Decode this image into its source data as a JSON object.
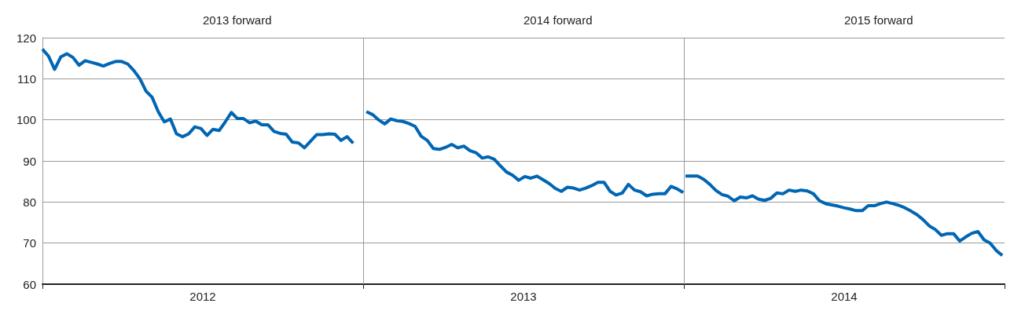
{
  "chart_data": {
    "type": "line",
    "annotations": [
      "2013 forward",
      "2014 forward",
      "2015 forward"
    ],
    "series": [
      {
        "color": "#0066b3",
        "x": [
          2012,
          2012.019,
          2012.038,
          2012.057,
          2012.076,
          2012.095,
          2012.114,
          2012.133,
          2012.152,
          2012.171,
          2012.19,
          2012.209,
          2012.228,
          2012.247,
          2012.266,
          2012.285,
          2012.304,
          2012.323,
          2012.342,
          2012.361,
          2012.38,
          2012.399,
          2012.418,
          2012.437,
          2012.456,
          2012.475,
          2012.494,
          2012.513,
          2012.532,
          2012.551,
          2012.57,
          2012.589,
          2012.608,
          2012.627,
          2012.646,
          2012.665,
          2012.684,
          2012.703,
          2012.722,
          2012.741,
          2012.76,
          2012.779,
          2012.798,
          2012.817,
          2012.836,
          2012.855,
          2012.874,
          2012.893,
          2012.912,
          2012.931,
          2012.95,
          2012.969
        ],
        "values": [
          117.2,
          115.5,
          112.3,
          115.3,
          116.1,
          115.2,
          113.3,
          114.4,
          114,
          113.6,
          113.1,
          113.7,
          114.2,
          114.2,
          113.6,
          112,
          110,
          107,
          105.5,
          102,
          99.5,
          100.2,
          96.6,
          95.9,
          96.6,
          98.3,
          97.9,
          96.2,
          97.7,
          97.4,
          99.5,
          101.8,
          100.3,
          100.3,
          99.3,
          99.7,
          98.8,
          98.8,
          97.2,
          96.7,
          96.5,
          94.6,
          94.4,
          93.2,
          94.8,
          96.4,
          96.4,
          96.6,
          96.5,
          95,
          95.9,
          94.3
        ]
      },
      {
        "color": "#0066b3",
        "x": [
          2013.01,
          2013.029,
          2013.048,
          2013.067,
          2013.086,
          2013.105,
          2013.124,
          2013.143,
          2013.162,
          2013.181,
          2013.2,
          2013.219,
          2013.238,
          2013.257,
          2013.276,
          2013.295,
          2013.314,
          2013.333,
          2013.352,
          2013.371,
          2013.39,
          2013.409,
          2013.428,
          2013.447,
          2013.466,
          2013.485,
          2013.504,
          2013.523,
          2013.542,
          2013.561,
          2013.58,
          2013.599,
          2013.618,
          2013.637,
          2013.656,
          2013.675,
          2013.694,
          2013.713,
          2013.732,
          2013.751,
          2013.77,
          2013.789,
          2013.808,
          2013.827,
          2013.846,
          2013.865,
          2013.884,
          2013.903,
          2013.922,
          2013.941,
          2013.96,
          2013.979,
          2013.998
        ],
        "values": [
          102,
          101.3,
          100,
          99,
          100.2,
          99.8,
          99.6,
          99.1,
          98.4,
          96,
          95,
          93,
          92.8,
          93.3,
          94,
          93.2,
          93.6,
          92.5,
          92,
          90.7,
          91,
          90.4,
          88.8,
          87.3,
          86.5,
          85.3,
          86.2,
          85.8,
          86.3,
          85.4,
          84.5,
          83.3,
          82.6,
          83.6,
          83.4,
          82.9,
          83.4,
          84,
          84.8,
          84.8,
          82.6,
          81.7,
          82.2,
          84.3,
          82.9,
          82.5,
          81.5,
          81.9,
          82,
          82,
          83.8,
          83.2,
          82.3
        ]
      },
      {
        "color": "#0066b3",
        "x": [
          2014.005,
          2014.024,
          2014.043,
          2014.062,
          2014.081,
          2014.1,
          2014.119,
          2014.138,
          2014.157,
          2014.176,
          2014.195,
          2014.214,
          2014.233,
          2014.252,
          2014.271,
          2014.29,
          2014.309,
          2014.328,
          2014.347,
          2014.366,
          2014.385,
          2014.404,
          2014.423,
          2014.442,
          2014.461,
          2014.48,
          2014.499,
          2014.518,
          2014.537,
          2014.556,
          2014.575,
          2014.594,
          2014.613,
          2014.632,
          2014.651,
          2014.67,
          2014.689,
          2014.708,
          2014.727,
          2014.746,
          2014.765,
          2014.784,
          2014.803,
          2014.822,
          2014.841,
          2014.86,
          2014.879,
          2014.898,
          2014.917,
          2014.936,
          2014.955,
          2014.974,
          2014.993
        ],
        "values": [
          86.3,
          86.3,
          86.3,
          85.5,
          84.3,
          82.8,
          81.8,
          81.4,
          80.3,
          81.2,
          81,
          81.5,
          80.7,
          80.4,
          80.9,
          82.2,
          82,
          82.9,
          82.6,
          82.9,
          82.7,
          82,
          80.3,
          79.6,
          79.3,
          79,
          78.6,
          78.3,
          77.9,
          77.9,
          79.1,
          79.1,
          79.6,
          80,
          79.6,
          79.2,
          78.6,
          77.8,
          76.9,
          75.7,
          74.2,
          73.3,
          71.9,
          72.3,
          72.3,
          70.5,
          71.5,
          72.4,
          72.8,
          70.8,
          70,
          68.2,
          67
        ]
      }
    ],
    "xlim": [
      2012,
      2015
    ],
    "xticks": [
      {
        "value": 2012,
        "label": null
      },
      {
        "value": 2012.5,
        "label": "2012"
      },
      {
        "value": 2013,
        "label": null
      },
      {
        "value": 2013.5,
        "label": "2013"
      },
      {
        "value": 2014,
        "label": null
      },
      {
        "value": 2014.5,
        "label": "2014"
      },
      {
        "value": 2015,
        "label": null
      }
    ],
    "ylim": [
      60,
      120
    ],
    "yticks": [
      60,
      70,
      80,
      90,
      100,
      110,
      120
    ],
    "ref_lines": [
      {
        "axis": "x",
        "value": 2013,
        "color": "#999999"
      },
      {
        "axis": "x",
        "value": 2014,
        "color": "#999999"
      }
    ],
    "grid": "y",
    "marker": "none"
  }
}
